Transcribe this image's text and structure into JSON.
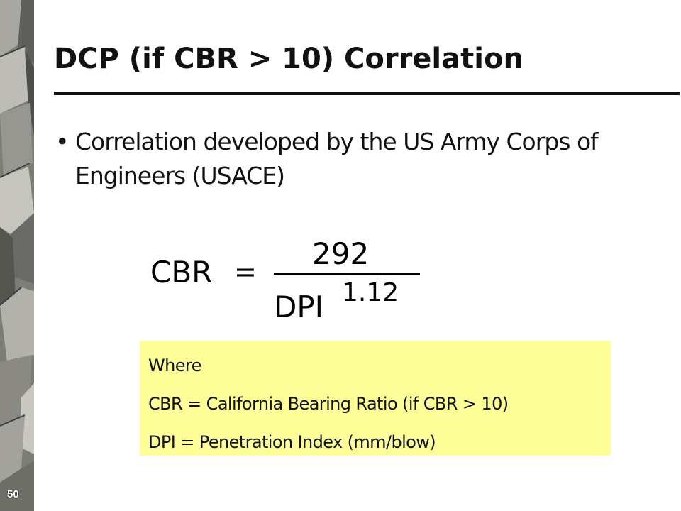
{
  "slide": {
    "number": "50",
    "title": "DCP (if CBR > 10) Correlation",
    "bullets": [
      "Correlation developed by the US Army Corps of Engineers (USACE)"
    ],
    "formula": {
      "lhs": "CBR",
      "equals": "=",
      "numerator": "292",
      "denominator": "DPI",
      "exponent": "1.12"
    },
    "legend": {
      "background": "#ffff99",
      "lines": [
        "Where",
        "CBR = California Bearing Ratio (if CBR > 10)",
        "DPI = Penetration Index (mm/blow)"
      ]
    }
  }
}
